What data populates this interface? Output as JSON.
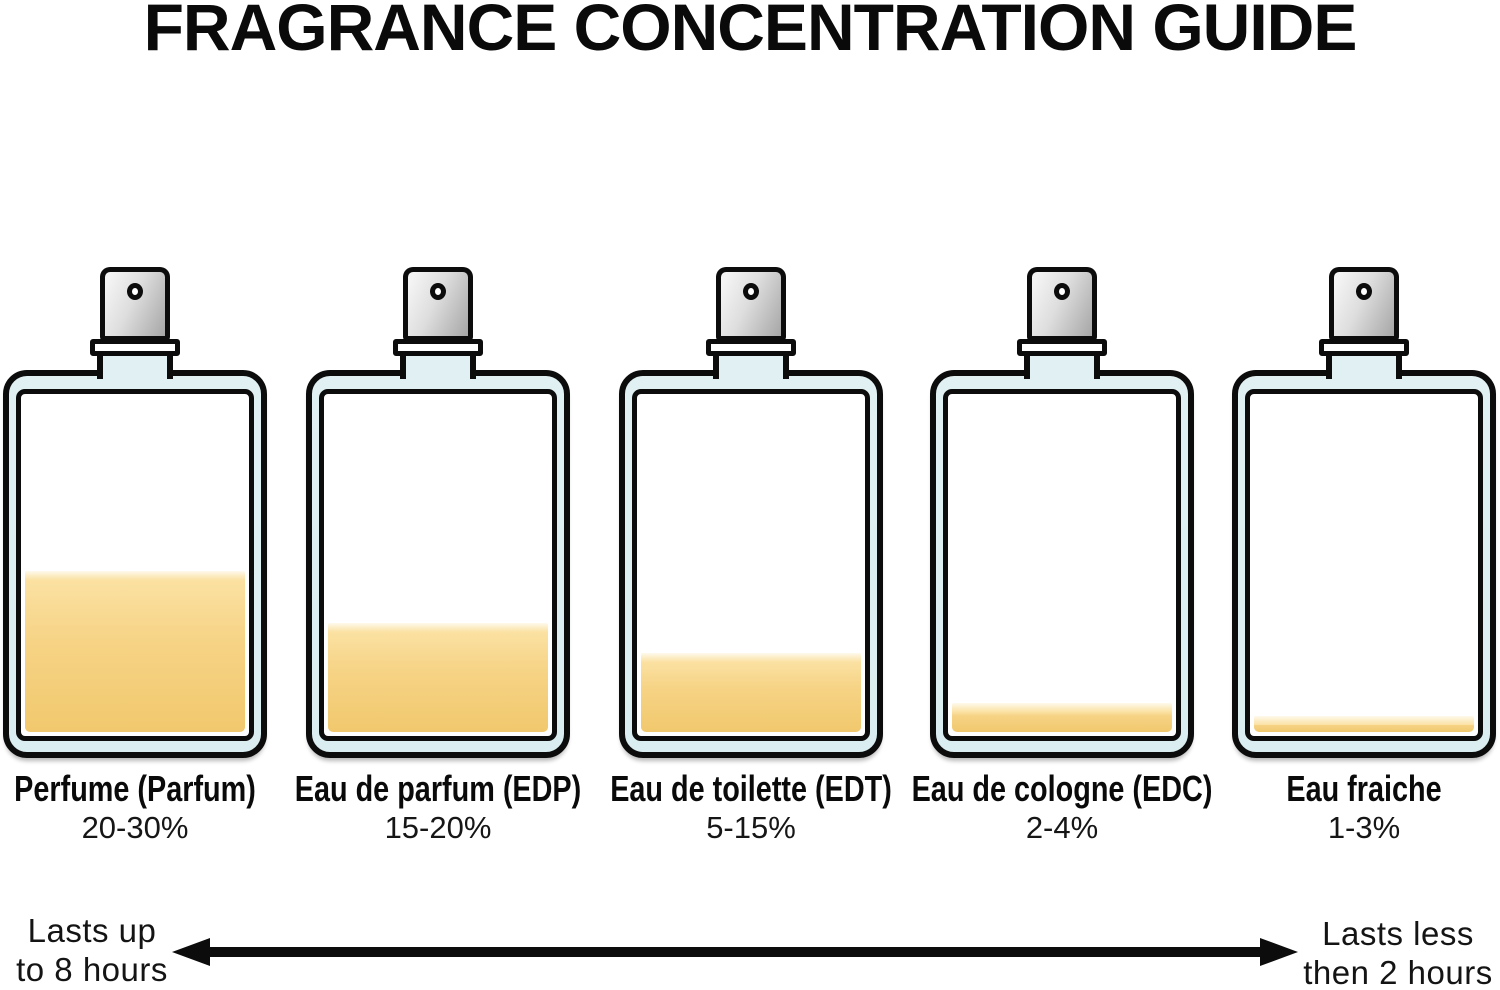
{
  "title": "FRAGRANCE CONCENTRATION GUIDE",
  "bottles": [
    {
      "name": "Perfume (Parfum)",
      "concentration": "20-30%",
      "fill_percent": 47
    },
    {
      "name": "Eau de parfum (EDP)",
      "concentration": "15-20%",
      "fill_percent": 32
    },
    {
      "name": "Eau de toilette (EDT)",
      "concentration": "5-15%",
      "fill_percent": 23
    },
    {
      "name": "Eau de cologne (EDC)",
      "concentration": "2-4%",
      "fill_percent": 8.5
    },
    {
      "name": "Eau fraiche",
      "concentration": "1-3%",
      "fill_percent": 4.7
    }
  ],
  "duration_arrow": {
    "left_line1": "Lasts up",
    "left_line2": "to 8 hours",
    "right_line1": "Lasts less",
    "right_line2": "then 2 hours"
  },
  "colors": {
    "outline": "#0c0c0c",
    "glass": "#e1f1f3",
    "liquid_top": "#fbe1a2",
    "liquid_mid": "#f6d385",
    "liquid_bottom": "#f1c86d",
    "cap_light": "#f4f4f4",
    "cap_dark": "#a6a6a6"
  }
}
